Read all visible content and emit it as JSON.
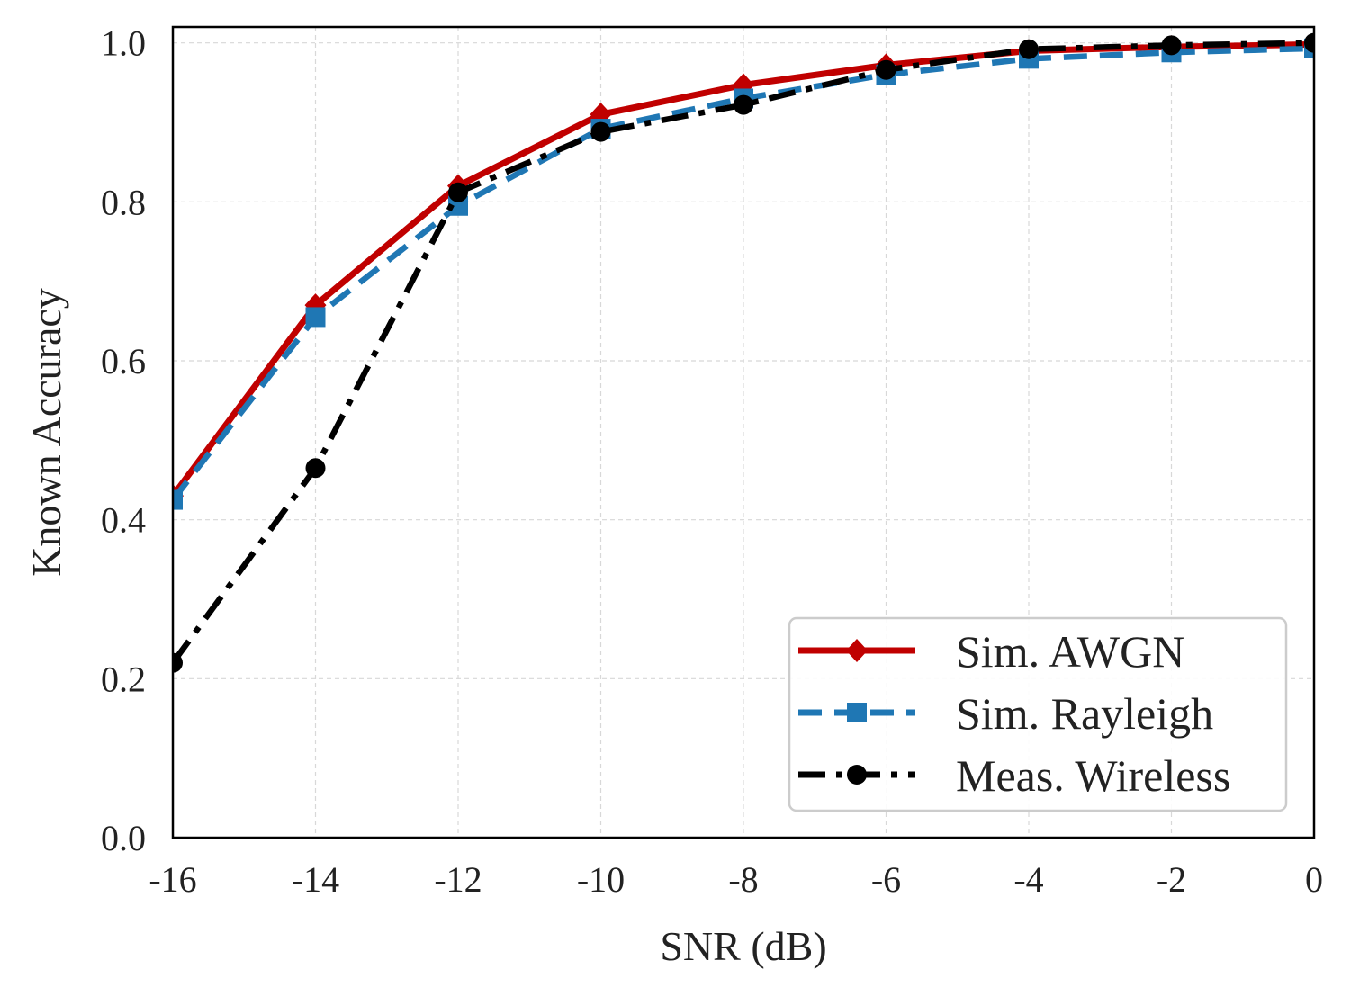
{
  "chart_data": {
    "type": "line",
    "xlabel": "SNR (dB)",
    "ylabel": "Known Accuracy",
    "xlim": [
      -16,
      0
    ],
    "ylim": [
      0,
      1.02
    ],
    "xticks": [
      -16,
      -14,
      -12,
      -10,
      -8,
      -6,
      -4,
      -2,
      0
    ],
    "yticks": [
      0.0,
      0.2,
      0.4,
      0.6,
      0.8,
      1.0
    ],
    "xtick_labels": [
      "-16",
      "-14",
      "-12",
      "-10",
      "-8",
      "-6",
      "-4",
      "-2",
      "0"
    ],
    "ytick_labels": [
      "0.0",
      "0.2",
      "0.4",
      "0.6",
      "0.8",
      "1.0"
    ],
    "grid": true,
    "legend_position": "bottom-right",
    "x": [
      -16,
      -14,
      -12,
      -10,
      -8,
      -6,
      -4,
      -2,
      0
    ],
    "series": [
      {
        "name": "Sim. AWGN",
        "values": [
          0.43,
          0.67,
          0.82,
          0.91,
          0.947,
          0.972,
          0.99,
          0.995,
          0.998
        ],
        "color": "#c00000",
        "line_style": "solid",
        "marker": "diamond"
      },
      {
        "name": "Sim. Rayleigh",
        "values": [
          0.425,
          0.655,
          0.795,
          0.892,
          0.93,
          0.96,
          0.98,
          0.988,
          0.993
        ],
        "color": "#1f77b4",
        "line_style": "dashed",
        "marker": "square"
      },
      {
        "name": "Meas. Wireless",
        "values": [
          0.22,
          0.465,
          0.812,
          0.888,
          0.922,
          0.966,
          0.992,
          0.997,
          1.0
        ],
        "color": "#000000",
        "line_style": "dashdot",
        "marker": "circle"
      }
    ]
  }
}
